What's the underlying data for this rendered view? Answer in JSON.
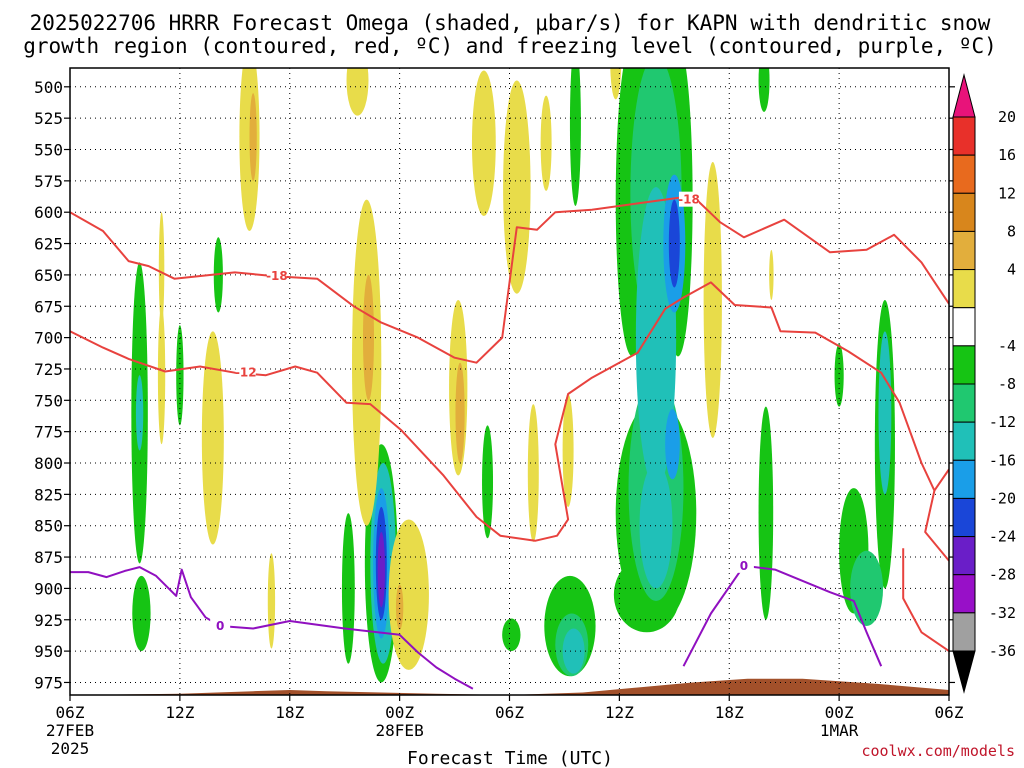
{
  "chart_data": {
    "type": "time-height",
    "title_line1": "2025022706 HRRR Forecast Omega (shaded, μbar/s) for KAPN with dendritic snow",
    "title_line2": "growth region (contoured, red, ºC) and freezing level (contoured, purple, ºC)",
    "xlabel": "Forecast Time (UTC)",
    "credit": "coolwx.com/models",
    "y_ticks": [
      500,
      525,
      550,
      575,
      600,
      625,
      650,
      675,
      700,
      725,
      750,
      775,
      800,
      825,
      850,
      875,
      900,
      925,
      950,
      975
    ],
    "y_tick_labels": [
      "500",
      "525",
      "550",
      "575",
      "600",
      "625",
      "650",
      "675",
      "700",
      "725",
      "750",
      "775",
      "800",
      "825",
      "850",
      "875",
      "900",
      "925",
      "950",
      "975"
    ],
    "ylim": [
      485,
      985
    ],
    "xlim": [
      0,
      48
    ],
    "x_ticks": [
      {
        "hour": 0,
        "label": "06Z",
        "sub1": "27FEB",
        "sub2": "2025"
      },
      {
        "hour": 6,
        "label": "12Z",
        "sub1": "",
        "sub2": ""
      },
      {
        "hour": 12,
        "label": "18Z",
        "sub1": "",
        "sub2": ""
      },
      {
        "hour": 18,
        "label": "00Z",
        "sub1": "28FEB",
        "sub2": ""
      },
      {
        "hour": 24,
        "label": "06Z",
        "sub1": "",
        "sub2": ""
      },
      {
        "hour": 30,
        "label": "12Z",
        "sub1": "",
        "sub2": ""
      },
      {
        "hour": 36,
        "label": "18Z",
        "sub1": "",
        "sub2": ""
      },
      {
        "hour": 42,
        "label": "00Z",
        "sub1": "1MAR",
        "sub2": ""
      },
      {
        "hour": 48,
        "label": "06Z",
        "sub1": "",
        "sub2": ""
      }
    ],
    "colorbar": {
      "labels": [
        "20",
        "16",
        "12",
        "8",
        "4",
        "-4",
        "-8",
        "-12",
        "-16",
        "-20",
        "-24",
        "-28",
        "-32",
        "-36"
      ],
      "colors": [
        "#e8137a",
        "#e8302a",
        "#e86a1e",
        "#d8861c",
        "#e2ae3c",
        "#e8dc4a",
        "#ffffff",
        "#16c414",
        "#20c870",
        "#20c0b8",
        "#1a9ee8",
        "#1a46d8",
        "#6a1ec8",
        "#9810c8",
        "#a0a0a0",
        "#000000"
      ]
    },
    "contour_labels": [
      {
        "text": "-18",
        "hour": 11.3,
        "p": 651,
        "color": "#e8423e"
      },
      {
        "text": "-18",
        "hour": 33.8,
        "p": 590,
        "color": "#e8423e"
      },
      {
        "text": "-12",
        "hour": 9.6,
        "p": 728,
        "color": "#e8423e"
      },
      {
        "text": "0",
        "hour": 8.2,
        "p": 930,
        "color": "#9010c0"
      },
      {
        "text": "0",
        "hour": 36.8,
        "p": 882,
        "color": "#9010c0"
      }
    ],
    "series": [
      {
        "name": "-18",
        "color": "#e8423e",
        "points": [
          [
            0,
            600
          ],
          [
            1.8,
            615
          ],
          [
            3.2,
            639
          ],
          [
            4.3,
            643
          ],
          [
            5.7,
            653
          ],
          [
            9,
            648
          ],
          [
            11.2,
            651
          ],
          [
            13.5,
            653
          ],
          [
            15.5,
            675
          ],
          [
            17,
            688
          ],
          [
            19,
            700
          ],
          [
            21,
            716
          ],
          [
            22.2,
            720
          ],
          [
            23.6,
            700
          ],
          [
            24.4,
            612
          ],
          [
            25.5,
            614
          ],
          [
            26.5,
            600
          ],
          [
            28.5,
            598
          ],
          [
            31,
            593
          ],
          [
            34,
            587
          ],
          [
            35.5,
            608
          ],
          [
            36.8,
            620
          ],
          [
            39,
            606
          ],
          [
            41.5,
            632
          ],
          [
            43.5,
            630
          ],
          [
            45,
            618
          ],
          [
            46.5,
            640
          ],
          [
            48,
            673
          ]
        ]
      },
      {
        "name": "-12",
        "color": "#e8423e",
        "points": [
          [
            0,
            695
          ],
          [
            1.8,
            708
          ],
          [
            3.2,
            717
          ],
          [
            5.2,
            727
          ],
          [
            7.1,
            723
          ],
          [
            9,
            728
          ],
          [
            10.7,
            730
          ],
          [
            12.3,
            723
          ],
          [
            13.5,
            728
          ],
          [
            15.1,
            752
          ],
          [
            16.4,
            753
          ],
          [
            18.1,
            774
          ],
          [
            20.4,
            810
          ],
          [
            22.2,
            843
          ],
          [
            23.5,
            858
          ],
          [
            25.4,
            862
          ],
          [
            26.6,
            858
          ],
          [
            27.2,
            845
          ],
          [
            26.5,
            785
          ],
          [
            27.2,
            745
          ],
          [
            28.5,
            732
          ],
          [
            31,
            712
          ],
          [
            32.5,
            677
          ],
          [
            33.5,
            668
          ],
          [
            35,
            656
          ],
          [
            36.3,
            674
          ],
          [
            38.3,
            676
          ],
          [
            38.8,
            695
          ],
          [
            40.7,
            696
          ],
          [
            42.5,
            711
          ],
          [
            44.3,
            728
          ],
          [
            45.3,
            752
          ],
          [
            46.5,
            800
          ],
          [
            47.2,
            822
          ],
          [
            46.7,
            855
          ],
          [
            48,
            878
          ]
        ]
      },
      {
        "name": "-12 east",
        "color": "#e8423e",
        "points": [
          [
            47.2,
            822
          ],
          [
            48,
            805
          ]
        ]
      },
      {
        "name": "-12 east2",
        "color": "#e8423e",
        "points": [
          [
            45.5,
            868
          ],
          [
            45.5,
            908
          ],
          [
            46.5,
            935
          ],
          [
            48,
            950
          ]
        ]
      },
      {
        "name": "0",
        "color": "#9010c0",
        "points": [
          [
            0,
            887
          ],
          [
            1,
            887
          ],
          [
            2,
            891
          ],
          [
            3,
            886
          ],
          [
            3.8,
            883
          ],
          [
            4.7,
            890
          ],
          [
            5.8,
            906
          ],
          [
            6.1,
            885
          ],
          [
            6.6,
            907
          ],
          [
            7.4,
            923
          ],
          [
            8.2,
            930
          ],
          [
            10,
            932
          ],
          [
            12,
            926
          ],
          [
            15,
            932
          ],
          [
            18,
            937
          ],
          [
            19,
            951
          ],
          [
            20,
            963
          ],
          [
            21,
            972
          ],
          [
            22,
            980
          ]
        ]
      },
      {
        "name": "0 east",
        "color": "#9010c0",
        "points": [
          [
            33.5,
            962
          ],
          [
            35,
            920
          ],
          [
            36.8,
            882
          ],
          [
            38.5,
            885
          ],
          [
            41.5,
            903
          ],
          [
            42.8,
            910
          ],
          [
            43.5,
            935
          ],
          [
            44.3,
            962
          ]
        ]
      }
    ]
  }
}
